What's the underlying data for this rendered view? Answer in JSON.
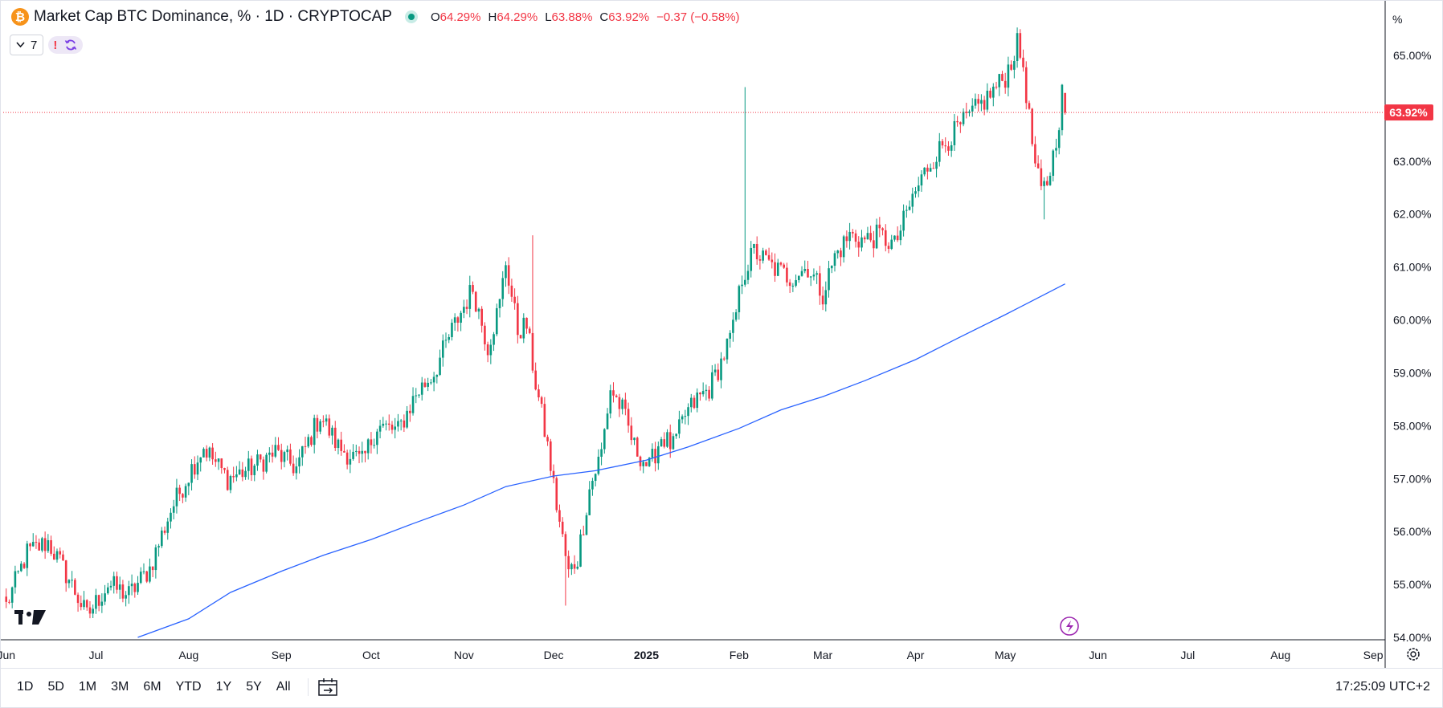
{
  "header": {
    "coin_symbol": "₿",
    "title": "Market Cap BTC Dominance, % · 1D · CRYPTOCAP",
    "ohlc": [
      {
        "label": "O",
        "value": "64.29%"
      },
      {
        "label": "H",
        "value": "64.29%"
      },
      {
        "label": "L",
        "value": "63.88%"
      },
      {
        "label": "C",
        "value": "63.92%"
      },
      {
        "label": "",
        "value": "−0.37 (−0.58%)"
      }
    ]
  },
  "indicators": {
    "count": "7",
    "warning": "!"
  },
  "price_axis": {
    "unit": "%",
    "current_label": "63.92%",
    "ticks": [
      "65.00%",
      "64.00%",
      "63.00%",
      "62.00%",
      "61.00%",
      "60.00%",
      "59.00%",
      "58.00%",
      "57.00%",
      "56.00%",
      "55.00%",
      "54.00%"
    ]
  },
  "time_axis": {
    "ticks": [
      "Jun",
      "Jul",
      "Aug",
      "Sep",
      "Oct",
      "Nov",
      "Dec",
      "2025",
      "Feb",
      "Mar",
      "Apr",
      "May",
      "Jun",
      "Jul",
      "Aug",
      "Sep"
    ]
  },
  "bottom_bar": {
    "ranges": [
      "1D",
      "5D",
      "1M",
      "3M",
      "6M",
      "YTD",
      "1Y",
      "5Y",
      "All"
    ],
    "clock": "17:25:09 UTC+2"
  },
  "colors": {
    "up": "#089981",
    "down": "#f23645",
    "ma": "#2962ff",
    "accent_pink": "#f23645"
  },
  "icons": [
    "bitcoin-icon",
    "chevron-down-icon",
    "refresh-icon",
    "tradingview-logo",
    "lightning-icon",
    "calendar-goto-icon",
    "settings-icon"
  ],
  "chart_data": {
    "type": "candlestick",
    "title": "Market Cap BTC Dominance, % · 1D · CRYPTOCAP",
    "ylim": [
      54,
      65.6
    ],
    "xlim": [
      "2024-05-31",
      "2025-09-05"
    ],
    "last": {
      "date": "2025-05-21",
      "open": 64.29,
      "high": 64.29,
      "low": 63.88,
      "close": 63.92
    },
    "series": [
      {
        "name": "",
        "kind": "close_anchor_points",
        "points": [
          [
            "2024-06-01",
            54.6
          ],
          [
            "2024-06-08",
            55.6
          ],
          [
            "2024-06-15",
            55.8
          ],
          [
            "2024-06-22",
            55.1
          ],
          [
            "2024-06-28",
            54.4
          ],
          [
            "2024-07-05",
            55.0
          ],
          [
            "2024-07-12",
            54.8
          ],
          [
            "2024-07-19",
            55.3
          ],
          [
            "2024-07-26",
            56.4
          ],
          [
            "2024-08-02",
            57.2
          ],
          [
            "2024-08-06",
            57.6
          ],
          [
            "2024-08-14",
            57.0
          ],
          [
            "2024-08-22",
            57.2
          ],
          [
            "2024-08-30",
            57.5
          ],
          [
            "2024-09-06",
            57.2
          ],
          [
            "2024-09-14",
            58.2
          ],
          [
            "2024-09-20",
            57.6
          ],
          [
            "2024-09-28",
            57.3
          ],
          [
            "2024-10-03",
            58.0
          ],
          [
            "2024-10-10",
            57.9
          ],
          [
            "2024-10-16",
            58.6
          ],
          [
            "2024-10-22",
            59.0
          ],
          [
            "2024-10-28",
            59.8
          ],
          [
            "2024-11-04",
            60.6
          ],
          [
            "2024-11-09",
            59.5
          ],
          [
            "2024-11-13",
            60.3
          ],
          [
            "2024-11-15",
            61.1
          ],
          [
            "2024-11-19",
            59.8
          ],
          [
            "2024-11-22",
            59.9
          ],
          [
            "2024-11-25",
            58.8
          ],
          [
            "2024-11-29",
            57.6
          ],
          [
            "2024-12-02",
            56.5
          ],
          [
            "2024-12-06",
            55.2
          ],
          [
            "2024-12-09",
            55.5
          ],
          [
            "2024-12-13",
            56.8
          ],
          [
            "2024-12-17",
            57.5
          ],
          [
            "2024-12-20",
            58.7
          ],
          [
            "2024-12-24",
            58.3
          ],
          [
            "2024-12-28",
            57.6
          ],
          [
            "2025-01-02",
            57.2
          ],
          [
            "2025-01-06",
            57.8
          ],
          [
            "2025-01-10",
            57.6
          ],
          [
            "2025-01-14",
            58.2
          ],
          [
            "2025-01-18",
            58.5
          ],
          [
            "2025-01-22",
            58.7
          ],
          [
            "2025-01-26",
            59.2
          ],
          [
            "2025-01-30",
            59.8
          ],
          [
            "2025-02-02",
            60.8
          ],
          [
            "2025-02-06",
            61.3
          ],
          [
            "2025-02-12",
            61.0
          ],
          [
            "2025-02-18",
            60.8
          ],
          [
            "2025-02-24",
            61.0
          ],
          [
            "2025-03-01",
            60.5
          ],
          [
            "2025-03-05",
            61.2
          ],
          [
            "2025-03-10",
            61.6
          ],
          [
            "2025-03-15",
            61.5
          ],
          [
            "2025-03-20",
            61.6
          ],
          [
            "2025-03-25",
            61.4
          ],
          [
            "2025-03-31",
            62.3
          ],
          [
            "2025-04-05",
            62.9
          ],
          [
            "2025-04-10",
            63.3
          ],
          [
            "2025-04-15",
            63.6
          ],
          [
            "2025-04-20",
            63.9
          ],
          [
            "2025-04-25",
            64.2
          ],
          [
            "2025-05-01",
            64.6
          ],
          [
            "2025-05-05",
            65.2
          ],
          [
            "2025-05-07",
            64.8
          ],
          [
            "2025-05-09",
            63.8
          ],
          [
            "2025-05-11",
            62.9
          ],
          [
            "2025-05-13",
            62.4
          ],
          [
            "2025-05-15",
            62.6
          ],
          [
            "2025-05-17",
            63.1
          ],
          [
            "2025-05-19",
            63.8
          ],
          [
            "2025-05-20",
            64.29
          ],
          [
            "2025-05-21",
            63.92
          ]
        ]
      },
      {
        "name": "",
        "kind": "moving_average",
        "points": [
          [
            "2024-07-15",
            54.0
          ],
          [
            "2024-08-01",
            54.35
          ],
          [
            "2024-08-15",
            54.85
          ],
          [
            "2024-09-01",
            55.25
          ],
          [
            "2024-09-15",
            55.55
          ],
          [
            "2024-10-01",
            55.85
          ],
          [
            "2024-10-15",
            56.15
          ],
          [
            "2024-11-01",
            56.5
          ],
          [
            "2024-11-15",
            56.85
          ],
          [
            "2024-12-01",
            57.05
          ],
          [
            "2024-12-15",
            57.15
          ],
          [
            "2025-01-01",
            57.35
          ],
          [
            "2025-01-15",
            57.6
          ],
          [
            "2025-02-01",
            57.95
          ],
          [
            "2025-02-15",
            58.3
          ],
          [
            "2025-03-01",
            58.55
          ],
          [
            "2025-03-15",
            58.85
          ],
          [
            "2025-04-01",
            59.25
          ],
          [
            "2025-04-15",
            59.65
          ],
          [
            "2025-05-01",
            60.1
          ],
          [
            "2025-05-21",
            60.68
          ]
        ]
      }
    ],
    "spikes": [
      {
        "date": "2025-02-03",
        "high": 64.4
      },
      {
        "date": "2024-11-24",
        "high": 61.6
      },
      {
        "date": "2024-12-05",
        "low": 54.6
      },
      {
        "date": "2025-05-14",
        "low": 61.9
      }
    ]
  }
}
